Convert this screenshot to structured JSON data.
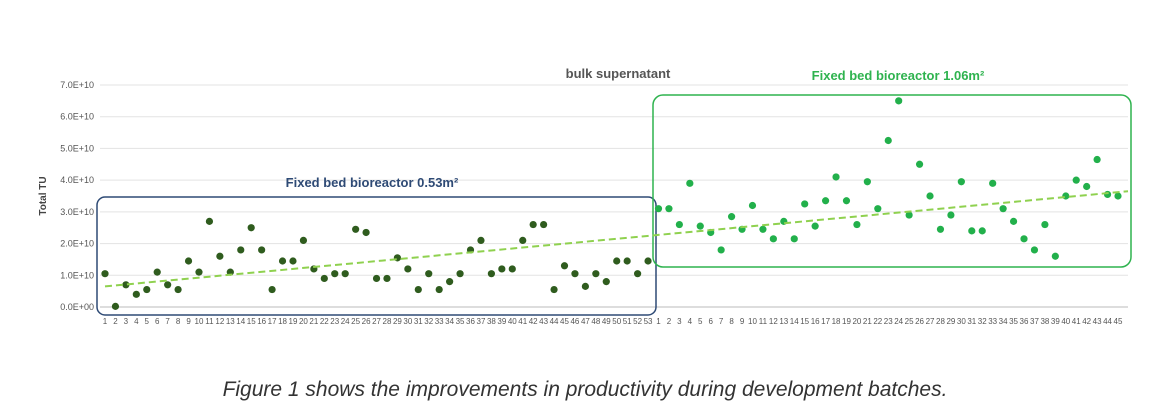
{
  "caption": "Figure 1 shows the improvements in productivity during development batches.",
  "chart_data": {
    "type": "scatter",
    "title": "bulk supernatant",
    "ylabel": "Total TU",
    "xlabel": "",
    "ylim": [
      0,
      70000000000
    ],
    "yticks": [
      0,
      10000000000,
      20000000000,
      30000000000,
      40000000000,
      50000000000,
      60000000000,
      70000000000
    ],
    "ytick_labels": [
      "0.0E+00",
      "1.0E+10",
      "2.0E+10",
      "3.0E+10",
      "4.0E+10",
      "5.0E+10",
      "6.0E+10",
      "7.0E+10"
    ],
    "grid": true,
    "trendline": {
      "style": "dashed",
      "color": "#8fd14f",
      "start": 6500000000,
      "end": 36500000000
    },
    "series": [
      {
        "name": "Fixed bed bioreactor 0.53m²",
        "color": "#2f5c1e",
        "box_color": "#2e4a75",
        "x": [
          "1",
          "2",
          "3",
          "4",
          "5",
          "6",
          "7",
          "8",
          "9",
          "10",
          "11",
          "12",
          "13",
          "14",
          "15",
          "16",
          "17",
          "18",
          "19",
          "20",
          "21",
          "22",
          "23",
          "24",
          "25",
          "26",
          "27",
          "28",
          "29",
          "30",
          "31",
          "32",
          "33",
          "34",
          "35",
          "36",
          "37",
          "38",
          "39",
          "40",
          "41",
          "42",
          "43",
          "44",
          "45",
          "46",
          "47",
          "48",
          "49",
          "50",
          "51",
          "52",
          "53"
        ],
        "values": [
          10.5,
          0.2,
          7,
          4,
          5.5,
          11,
          7,
          5.5,
          14.5,
          11,
          27,
          16,
          11,
          18,
          25,
          18,
          5.5,
          14.5,
          14.5,
          21,
          12,
          9,
          10.5,
          10.5,
          24.5,
          23.5,
          9,
          9,
          15.5,
          12,
          5.5,
          10.5,
          5.5,
          8,
          10.5,
          18,
          21,
          10.5,
          12,
          12,
          21,
          26,
          26,
          5.5,
          13,
          10.5,
          6.5,
          10.5,
          8,
          14.5,
          14.5,
          10.5,
          14.5
        ],
        "value_unit": 1000000000
      },
      {
        "name": "Fixed bed bioreactor 1.06m²",
        "color": "#22b04b",
        "box_color": "#2fb34f",
        "x": [
          "1",
          "2",
          "3",
          "4",
          "5",
          "6",
          "7",
          "8",
          "9",
          "10",
          "11",
          "12",
          "13",
          "14",
          "15",
          "16",
          "17",
          "18",
          "19",
          "20",
          "21",
          "22",
          "23",
          "24",
          "25",
          "26",
          "27",
          "28",
          "29",
          "30",
          "31",
          "32",
          "33",
          "34",
          "35",
          "36",
          "37",
          "38",
          "39",
          "40",
          "41",
          "42",
          "43",
          "44",
          "45"
        ],
        "values": [
          31,
          31,
          26,
          39,
          25.5,
          23.5,
          18,
          28.5,
          24.5,
          32,
          24.5,
          21.5,
          27,
          21.5,
          32.5,
          25.5,
          33.5,
          41,
          33.5,
          26,
          39.5,
          31,
          52.5,
          65,
          29,
          45,
          35,
          24.5,
          29,
          39.5,
          24,
          24,
          39,
          31,
          27,
          21.5,
          18,
          26,
          16,
          35,
          40,
          38,
          46.5,
          35.5,
          35
        ],
        "value_unit": 1000000000
      }
    ]
  }
}
